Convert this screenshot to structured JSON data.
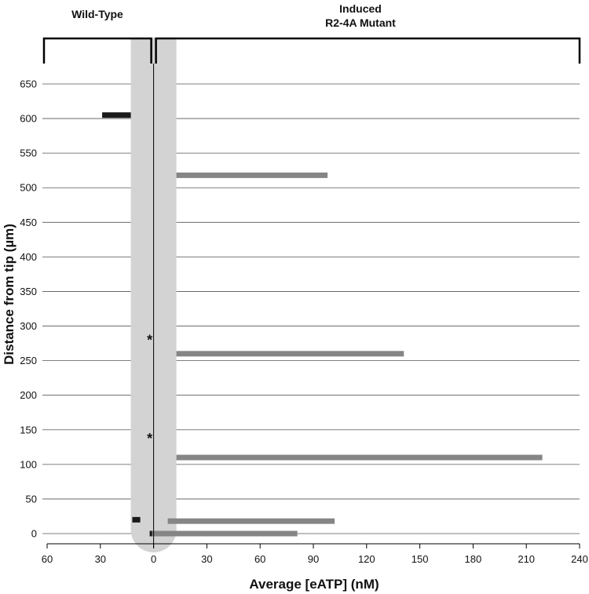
{
  "chart_data": {
    "type": "bar",
    "orientation": "horizontal",
    "xlabel": "Average [eATP] (nM)",
    "ylabel": "Distance from tip (µm)",
    "x_axis": {
      "note": "left of zero shows wild-type magnitudes (reversed), right of zero shows mutant",
      "ticks": [
        {
          "value": -60,
          "label": "60"
        },
        {
          "value": -30,
          "label": "30"
        },
        {
          "value": 0,
          "label": "0"
        },
        {
          "value": 30,
          "label": "30"
        },
        {
          "value": 60,
          "label": "60"
        },
        {
          "value": 90,
          "label": "90"
        },
        {
          "value": 120,
          "label": "120"
        },
        {
          "value": 150,
          "label": "150"
        },
        {
          "value": 180,
          "label": "180"
        },
        {
          "value": 210,
          "label": "210"
        },
        {
          "value": 240,
          "label": "240"
        }
      ],
      "range": [
        -60,
        240
      ]
    },
    "y_axis": {
      "ticks": [
        "0",
        "50",
        "100",
        "150",
        "200",
        "250",
        "300",
        "350",
        "400",
        "450",
        "500",
        "550",
        "600",
        "650"
      ],
      "range": [
        -10,
        670
      ]
    },
    "grid": true,
    "groups": [
      {
        "label": "Wild-Type",
        "x_range": [
          -60,
          -1
        ]
      },
      {
        "label_line1": "Induced",
        "label_line2": "R2-4A Mutant",
        "x_range": [
          1,
          240
        ]
      }
    ],
    "series": [
      {
        "name": "Wild-Type",
        "color": "#1a1a1a",
        "bars": [
          {
            "y": 605,
            "value": 29
          },
          {
            "y": 20,
            "value": 12
          },
          {
            "y": 0,
            "value": 2
          }
        ]
      },
      {
        "name": "Induced R2-4A Mutant",
        "color": "#858585",
        "bars": [
          {
            "y": 518,
            "value": 98
          },
          {
            "y": 260,
            "value": 141
          },
          {
            "y": 110,
            "value": 219
          },
          {
            "y": 18,
            "value": 102
          },
          {
            "y": 0,
            "value": 81
          }
        ]
      }
    ],
    "annotations": [
      {
        "text": "*",
        "y": 284
      },
      {
        "text": "*",
        "y": 142
      }
    ],
    "root_shape_color": "#d3d3d3"
  }
}
